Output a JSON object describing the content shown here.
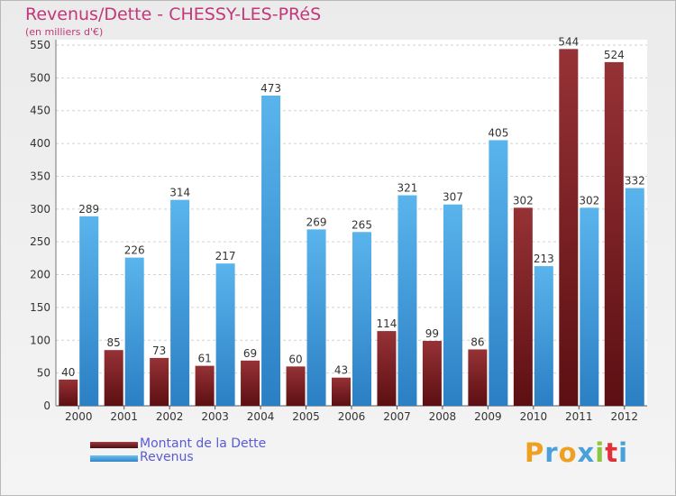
{
  "title": "Revenus/Dette - CHESSY-LES-PRéS",
  "subtitle": "(en milliers d'€)",
  "chart_data": {
    "type": "bar",
    "categories": [
      "2000",
      "2001",
      "2002",
      "2003",
      "2004",
      "2005",
      "2006",
      "2007",
      "2008",
      "2009",
      "2010",
      "2011",
      "2012"
    ],
    "series": [
      {
        "name": "Montant de la Dette",
        "color": "#7a1e22",
        "values": [
          40,
          85,
          73,
          61,
          69,
          60,
          43,
          114,
          99,
          86,
          302,
          544,
          524
        ]
      },
      {
        "name": "Revenus",
        "color": "#3f9fe0",
        "values": [
          289,
          226,
          314,
          217,
          473,
          269,
          265,
          321,
          307,
          405,
          213,
          302,
          332
        ]
      }
    ],
    "ylim": [
      0,
      550
    ],
    "yticks": [
      0,
      50,
      100,
      150,
      200,
      250,
      300,
      350,
      400,
      450,
      500,
      550
    ],
    "grid": true,
    "legend_position": "bottom-left"
  },
  "logo": {
    "letters": [
      "P",
      "r",
      "o",
      "x",
      "i",
      "t",
      "i"
    ],
    "colors": [
      "#f0a020",
      "#4aa0d8",
      "#f0a020",
      "#4aa0d8",
      "#8cc63f",
      "#e0303a",
      "#4aa0d8"
    ]
  }
}
